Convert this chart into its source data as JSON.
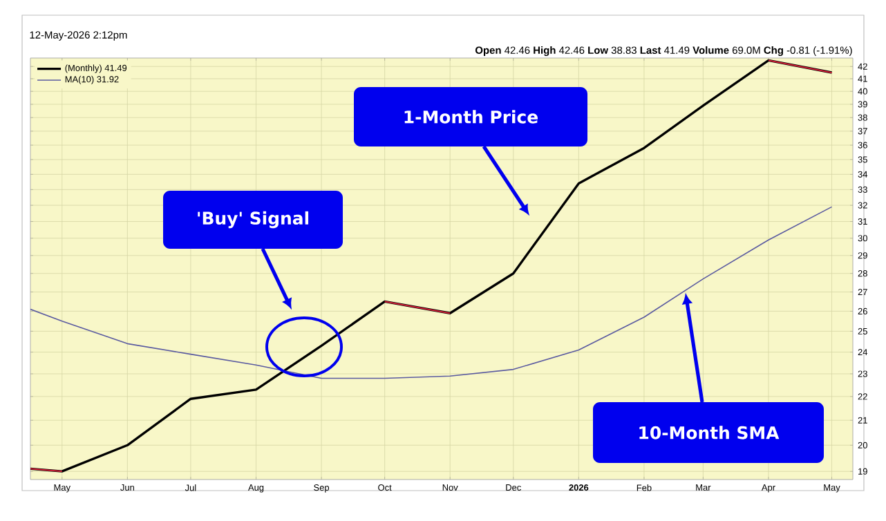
{
  "chart_data": {
    "type": "line",
    "subtitle": "12-May-2026 2:12pm",
    "x": [
      "2025-04-16",
      "2025-05",
      "2025-06",
      "2025-07",
      "2025-08",
      "2025-09",
      "2025-10",
      "2025-11",
      "2025-12",
      "2026-01",
      "2026-02",
      "2026-03",
      "2026-04",
      "2026-05"
    ],
    "series": [
      {
        "name": "(Monthly) 41.49",
        "color": "#000000",
        "values": [
          19.1,
          19.0,
          20.0,
          21.9,
          22.3,
          24.3,
          26.5,
          25.9,
          28.0,
          33.4,
          35.8,
          38.9,
          42.5,
          41.5
        ]
      },
      {
        "color": "#e0203a",
        "values": [
          19.1,
          19.0,
          null,
          null,
          null,
          null,
          26.5,
          25.9,
          null,
          null,
          null,
          null,
          42.5,
          41.5
        ]
      },
      {
        "name": "MA(10) 31.92",
        "color": "#5a5aa0",
        "values": [
          26.1,
          25.5,
          24.4,
          23.9,
          23.4,
          22.8,
          22.8,
          22.9,
          23.2,
          24.1,
          25.7,
          27.7,
          29.9,
          31.9
        ]
      }
    ],
    "xlim": [
      "2025-04-16",
      "2026-05-11"
    ],
    "xticks": [
      {
        "value": "2025-05",
        "label": "May"
      },
      {
        "value": "2025-06",
        "label": "Jun"
      },
      {
        "value": "2025-07",
        "label": "Jul"
      },
      {
        "value": "2025-08",
        "label": "Aug"
      },
      {
        "value": "2025-09",
        "label": "Sep"
      },
      {
        "value": "2025-10",
        "label": "Oct"
      },
      {
        "value": "2025-11",
        "label": "Nov"
      },
      {
        "value": "2025-12",
        "label": "Dec"
      },
      {
        "value": "2026-01",
        "label": "2026"
      },
      {
        "value": "2026-02",
        "label": "Feb"
      },
      {
        "value": "2026-03",
        "label": "Mar"
      },
      {
        "value": "2026-04",
        "label": "Apr"
      },
      {
        "value": "2026-05",
        "label": "May"
      }
    ],
    "ylim": [
      18.7,
      42.7
    ],
    "yticks": [
      19,
      20,
      21,
      22,
      23,
      24,
      25,
      26,
      27,
      28,
      29,
      30,
      31,
      32,
      33,
      34,
      35,
      36,
      37,
      38,
      39,
      40,
      41,
      42
    ],
    "log": "y",
    "grid": true,
    "legend": "top left",
    "annotations": [
      "**Open** 42.46 **High** 42.46 **Low** 38.83 **Last** 41.49 **Volume** 69.0M **Chg** -0.81 (-1.91%)",
      "1-Month Price",
      "'Buy' Signal",
      "10-Month SMA"
    ]
  }
}
